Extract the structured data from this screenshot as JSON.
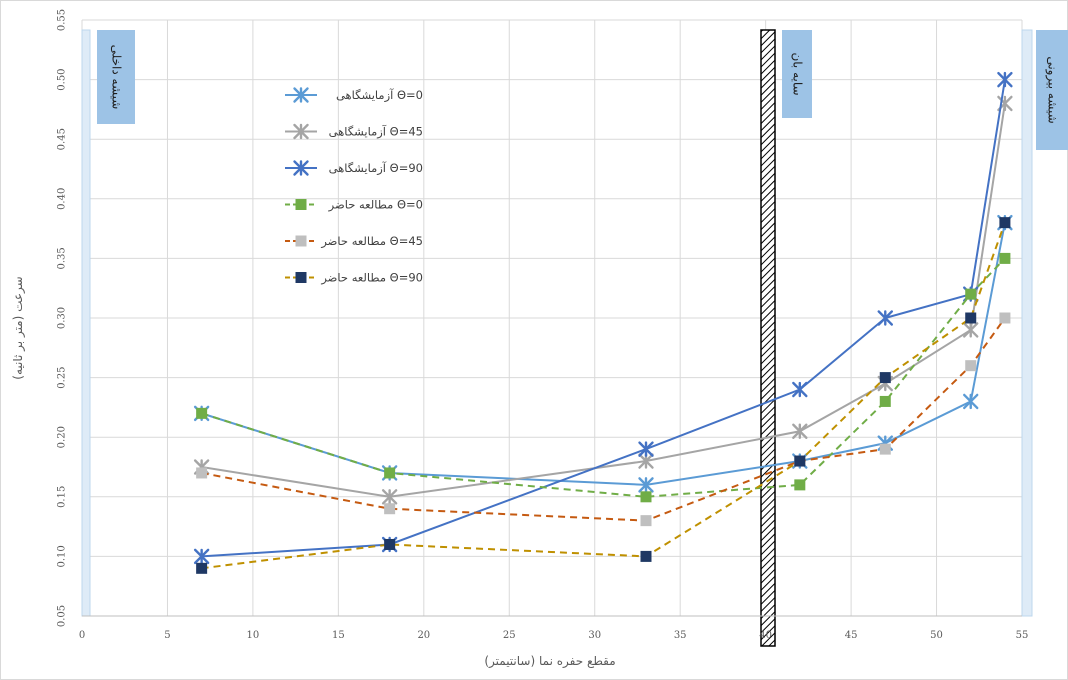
{
  "chart_data": {
    "type": "line",
    "xlabel": "مقطع حفره نما (سانتیمتر)",
    "ylabel": "سرعت (متر بر ثانیه)",
    "xlim": [
      0,
      55
    ],
    "ylim": [
      0.05,
      0.55
    ],
    "x_ticks": [
      "0",
      "5",
      "10",
      "15",
      "20",
      "25",
      "30",
      "35",
      "40",
      "45",
      "50",
      "55"
    ],
    "y_ticks": [
      "0.05",
      "0.10",
      "0.15",
      "0.20",
      "0.25",
      "0.30",
      "0.35",
      "0.40",
      "0.45",
      "0.50",
      "0.55"
    ],
    "grid": true,
    "legend_position": "top-left",
    "annotations": {
      "inner_glass": "شیشه داخلی",
      "shade": "سایه بان",
      "outer_glass": "شیشه بیرونی"
    },
    "series": [
      {
        "name": "آزمایشگاهی Θ=0",
        "marker": "asterisk",
        "color": "#5b9bd5",
        "line": "solid",
        "x": [
          7,
          18,
          33,
          42,
          47,
          52,
          54
        ],
        "y": [
          0.22,
          0.17,
          0.16,
          0.18,
          0.195,
          0.23,
          0.38
        ]
      },
      {
        "name": "آزمایشگاهی Θ=45",
        "marker": "asterisk",
        "color": "#a5a5a5",
        "line": "solid",
        "x": [
          7,
          18,
          33,
          42,
          47,
          52,
          54
        ],
        "y": [
          0.175,
          0.15,
          0.18,
          0.205,
          0.245,
          0.29,
          0.48
        ]
      },
      {
        "name": "آزمایشگاهی Θ=90",
        "marker": "asterisk",
        "color": "#4472c4",
        "line": "solid",
        "x": [
          7,
          18,
          33,
          42,
          47,
          52,
          54
        ],
        "y": [
          0.1,
          0.11,
          0.19,
          0.24,
          0.3,
          0.32,
          0.5
        ]
      },
      {
        "name": "مطالعه حاضر Θ=0",
        "marker": "square",
        "color": "#70ad47",
        "line": "dashed",
        "x": [
          7,
          18,
          33,
          42,
          47,
          52,
          54
        ],
        "y": [
          0.22,
          0.17,
          0.15,
          0.16,
          0.23,
          0.32,
          0.35
        ]
      },
      {
        "name": "مطالعه حاضر Θ=45",
        "marker": "square",
        "color": "#c55a11",
        "marker_color": "#bfbfbf",
        "line": "dashed",
        "x": [
          7,
          18,
          33,
          42,
          47,
          52,
          54
        ],
        "y": [
          0.17,
          0.14,
          0.13,
          0.18,
          0.19,
          0.26,
          0.3
        ]
      },
      {
        "name": "مطالعه حاضر Θ=90",
        "marker": "square",
        "color": "#bf9000",
        "marker_color": "#1f3864",
        "line": "dashed",
        "x": [
          7,
          18,
          33,
          42,
          47,
          52,
          54
        ],
        "y": [
          0.09,
          0.11,
          0.1,
          0.18,
          0.25,
          0.3,
          0.38
        ]
      }
    ]
  }
}
